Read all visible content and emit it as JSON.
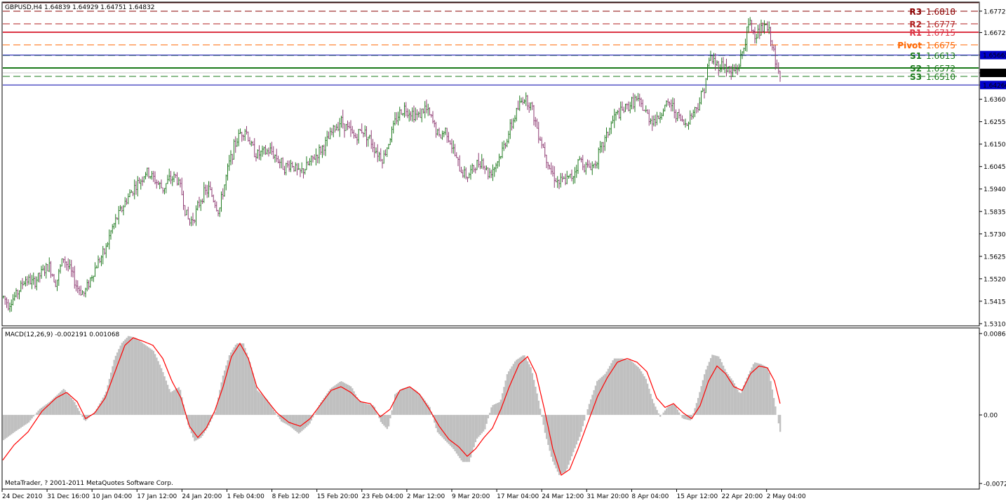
{
  "colors": {
    "bull": "#1f7a1f",
    "bear": "#8e3a72",
    "histogram": "#c0c0c0",
    "signal": "#ff0000",
    "r3": "#8b0000",
    "r2": "#b22222",
    "r1": "#dc3545",
    "pivot": "#ff6600",
    "s1": "#1a7a1a",
    "s2": "#1a7a1a",
    "s3": "#1a7a1a",
    "support_line": "#0000aa",
    "price_line": "#c8c8c8",
    "tag_blue": "#0000cc",
    "tag_black": "#000000"
  },
  "header": {
    "symbol_info": "GBPUSD,H4  1.64839 1.64929 1.64751 1.64832",
    "macd_info": "MACD(12,26,9) -0.002191 0.001068",
    "copyright": "MetaTrader, ? 2001-2011 MetaQuotes Software Corp."
  },
  "chart_data": [
    {
      "type": "ohlc",
      "symbol": "GBPUSD",
      "timeframe": "H4",
      "last_bar": {
        "open": 1.64839,
        "high": 1.64929,
        "low": 1.64751,
        "close": 1.64832
      },
      "ylim": [
        1.5313,
        1.6775
      ],
      "y_ticks": [
        "1.67720",
        "1.66720",
        "1.65665",
        "1.64832",
        "1.64266",
        "1.63600",
        "1.62550",
        "1.61500",
        "1.60450",
        "1.59400",
        "1.58350",
        "1.57300",
        "1.56250",
        "1.55200",
        "1.54150",
        "1.53100"
      ],
      "tagged_levels": [
        {
          "label": "1.65665",
          "value": 1.65665,
          "style": "blue"
        },
        {
          "label": "1.64832",
          "value": 1.64832,
          "style": "black"
        },
        {
          "label": "1.64266",
          "value": 1.64266,
          "style": "blue"
        }
      ],
      "pivot_levels": [
        {
          "name": "R3",
          "value": "1.6818",
          "color_key": "r3"
        },
        {
          "name": "R2",
          "value": "1.6777",
          "color_key": "r2"
        },
        {
          "name": "R1",
          "value": "1.6715",
          "color_key": "r1"
        },
        {
          "name": "Pivot",
          "value": "1.6675",
          "color_key": "pivot"
        },
        {
          "name": "S1",
          "value": "1.6613",
          "color_key": "s1"
        },
        {
          "name": "S2",
          "value": "1.6572",
          "color_key": "s2"
        },
        {
          "name": "S3",
          "value": "1.6510",
          "color_key": "s3"
        }
      ],
      "close_path": [
        [
          0,
          1.546
        ],
        [
          12,
          1.54
        ],
        [
          24,
          1.545
        ],
        [
          36,
          1.552
        ],
        [
          48,
          1.55
        ],
        [
          60,
          1.555
        ],
        [
          70,
          1.558
        ],
        [
          80,
          1.55
        ],
        [
          90,
          1.562
        ],
        [
          100,
          1.556
        ],
        [
          110,
          1.548
        ],
        [
          120,
          1.545
        ],
        [
          130,
          1.553
        ],
        [
          140,
          1.56
        ],
        [
          150,
          1.565
        ],
        [
          158,
          1.574
        ],
        [
          166,
          1.58
        ],
        [
          174,
          1.585
        ],
        [
          182,
          1.59
        ],
        [
          192,
          1.595
        ],
        [
          200,
          1.598
        ],
        [
          208,
          1.602
        ],
        [
          216,
          1.6
        ],
        [
          224,
          1.597
        ],
        [
          232,
          1.594
        ],
        [
          240,
          1.598
        ],
        [
          250,
          1.6
        ],
        [
          258,
          1.594
        ],
        [
          264,
          1.584
        ],
        [
          270,
          1.578
        ],
        [
          278,
          1.582
        ],
        [
          288,
          1.591
        ],
        [
          298,
          1.594
        ],
        [
          306,
          1.588
        ],
        [
          312,
          1.583
        ],
        [
          318,
          1.593
        ],
        [
          326,
          1.605
        ],
        [
          334,
          1.614
        ],
        [
          342,
          1.62
        ],
        [
          350,
          1.622
        ],
        [
          358,
          1.614
        ],
        [
          366,
          1.61
        ],
        [
          376,
          1.611
        ],
        [
          386,
          1.612
        ],
        [
          396,
          1.608
        ],
        [
          406,
          1.604
        ],
        [
          416,
          1.606
        ],
        [
          426,
          1.601
        ],
        [
          436,
          1.604
        ],
        [
          446,
          1.608
        ],
        [
          456,
          1.612
        ],
        [
          466,
          1.616
        ],
        [
          476,
          1.622
        ],
        [
          486,
          1.626
        ],
        [
          496,
          1.622
        ],
        [
          506,
          1.618
        ],
        [
          516,
          1.622
        ],
        [
          526,
          1.618
        ],
        [
          536,
          1.612
        ],
        [
          546,
          1.608
        ],
        [
          556,
          1.618
        ],
        [
          566,
          1.628
        ],
        [
          576,
          1.632
        ],
        [
          586,
          1.63
        ],
        [
          596,
          1.628
        ],
        [
          606,
          1.632
        ],
        [
          616,
          1.626
        ],
        [
          626,
          1.618
        ],
        [
          636,
          1.622
        ],
        [
          646,
          1.612
        ],
        [
          656,
          1.603
        ],
        [
          666,
          1.6
        ],
        [
          676,
          1.604
        ],
        [
          686,
          1.608
        ],
        [
          696,
          1.601
        ],
        [
          706,
          1.605
        ],
        [
          716,
          1.612
        ],
        [
          726,
          1.621
        ],
        [
          736,
          1.63
        ],
        [
          746,
          1.637
        ],
        [
          756,
          1.634
        ],
        [
          766,
          1.622
        ],
        [
          776,
          1.612
        ],
        [
          786,
          1.602
        ],
        [
          796,
          1.597
        ],
        [
          806,
          1.598
        ],
        [
          816,
          1.6
        ],
        [
          826,
          1.608
        ],
        [
          836,
          1.604
        ],
        [
          846,
          1.605
        ],
        [
          856,
          1.612
        ],
        [
          866,
          1.62
        ],
        [
          876,
          1.628
        ],
        [
          886,
          1.63
        ],
        [
          896,
          1.633
        ],
        [
          906,
          1.636
        ],
        [
          916,
          1.632
        ],
        [
          926,
          1.627
        ],
        [
          936,
          1.626
        ],
        [
          946,
          1.632
        ],
        [
          956,
          1.634
        ],
        [
          966,
          1.628
        ],
        [
          976,
          1.624
        ],
        [
          986,
          1.629
        ],
        [
          996,
          1.634
        ],
        [
          1004,
          1.642
        ],
        [
          1012,
          1.656
        ],
        [
          1022,
          1.652
        ],
        [
          1032,
          1.652
        ],
        [
          1042,
          1.648
        ],
        [
          1052,
          1.651
        ],
        [
          1060,
          1.66
        ],
        [
          1068,
          1.672
        ],
        [
          1076,
          1.666
        ],
        [
          1084,
          1.668
        ],
        [
          1092,
          1.67
        ],
        [
          1100,
          1.664
        ],
        [
          1106,
          1.65
        ],
        [
          1112,
          1.648
        ]
      ]
    },
    {
      "type": "bar",
      "name": "MACD(12,26,9)",
      "macd": -0.002191,
      "signal": 0.001068,
      "ylim": [
        -0.00729,
        0.00865
      ],
      "y_ticks": [
        "0.00865",
        "0.00",
        "-0.00729"
      ],
      "zero": 0,
      "macd_path": [
        [
          0,
          -0.0029
        ],
        [
          20,
          -0.0018
        ],
        [
          40,
          -0.0008
        ],
        [
          55,
          0.0006
        ],
        [
          70,
          0.0014
        ],
        [
          90,
          0.0028
        ],
        [
          105,
          0.0014
        ],
        [
          120,
          -0.0007
        ],
        [
          135,
          0.0004
        ],
        [
          150,
          0.0024
        ],
        [
          162,
          0.006
        ],
        [
          172,
          0.0076
        ],
        [
          182,
          0.0084
        ],
        [
          192,
          0.0082
        ],
        [
          205,
          0.0075
        ],
        [
          218,
          0.0068
        ],
        [
          230,
          0.0048
        ],
        [
          242,
          0.0024
        ],
        [
          255,
          0.003
        ],
        [
          266,
          -0.0008
        ],
        [
          276,
          -0.0028
        ],
        [
          286,
          -0.0024
        ],
        [
          296,
          -0.0012
        ],
        [
          306,
          0.0004
        ],
        [
          316,
          0.004
        ],
        [
          326,
          0.0064
        ],
        [
          336,
          0.0076
        ],
        [
          346,
          0.0076
        ],
        [
          356,
          0.0054
        ],
        [
          366,
          0.0026
        ],
        [
          380,
          0.0016
        ],
        [
          390,
          0.0004
        ],
        [
          400,
          -0.0007
        ],
        [
          412,
          -0.0012
        ],
        [
          425,
          -0.002
        ],
        [
          440,
          -0.001
        ],
        [
          455,
          0.0012
        ],
        [
          470,
          0.0028
        ],
        [
          485,
          0.0036
        ],
        [
          500,
          0.003
        ],
        [
          510,
          0.0016
        ],
        [
          520,
          0.0012
        ],
        [
          532,
          0.001
        ],
        [
          542,
          -0.0008
        ],
        [
          552,
          -0.0016
        ],
        [
          562,
          0.0022
        ],
        [
          572,
          0.0028
        ],
        [
          582,
          0.003
        ],
        [
          592,
          0.0026
        ],
        [
          602,
          0.0018
        ],
        [
          612,
          0.0008
        ],
        [
          622,
          -0.0018
        ],
        [
          632,
          -0.0026
        ],
        [
          645,
          -0.0036
        ],
        [
          658,
          -0.005
        ],
        [
          668,
          -0.005
        ],
        [
          678,
          -0.0026
        ],
        [
          690,
          -0.0016
        ],
        [
          700,
          0.001
        ],
        [
          712,
          0.0014
        ],
        [
          722,
          0.0044
        ],
        [
          734,
          0.0058
        ],
        [
          746,
          0.0064
        ],
        [
          756,
          0.005
        ],
        [
          766,
          0.0018
        ],
        [
          776,
          -0.002
        ],
        [
          786,
          -0.0048
        ],
        [
          796,
          -0.0064
        ],
        [
          806,
          -0.006
        ],
        [
          816,
          -0.004
        ],
        [
          826,
          -0.0022
        ],
        [
          838,
          0.001
        ],
        [
          850,
          0.0036
        ],
        [
          862,
          0.0044
        ],
        [
          874,
          0.006
        ],
        [
          886,
          0.006
        ],
        [
          898,
          0.0058
        ],
        [
          910,
          0.005
        ],
        [
          920,
          0.0038
        ],
        [
          930,
          0.0014
        ],
        [
          940,
          -0.0002
        ],
        [
          950,
          0.0008
        ],
        [
          960,
          0.0012
        ],
        [
          972,
          -0.0004
        ],
        [
          984,
          -0.0006
        ],
        [
          994,
          0.0018
        ],
        [
          1004,
          0.0046
        ],
        [
          1014,
          0.0064
        ],
        [
          1024,
          0.0062
        ],
        [
          1034,
          0.0046
        ],
        [
          1044,
          0.0036
        ],
        [
          1054,
          0.0022
        ],
        [
          1064,
          0.004
        ],
        [
          1074,
          0.0056
        ],
        [
          1084,
          0.0054
        ],
        [
          1094,
          0.005
        ],
        [
          1104,
          0.001
        ],
        [
          1112,
          -0.0022
        ]
      ],
      "signal_path": [
        [
          0,
          -0.0052
        ],
        [
          20,
          -0.0032
        ],
        [
          40,
          -0.0018
        ],
        [
          60,
          0.0004
        ],
        [
          80,
          0.0018
        ],
        [
          95,
          0.0024
        ],
        [
          110,
          0.0014
        ],
        [
          122,
          -0.0004
        ],
        [
          135,
          0.0002
        ],
        [
          150,
          0.0018
        ],
        [
          165,
          0.0048
        ],
        [
          178,
          0.0074
        ],
        [
          190,
          0.0082
        ],
        [
          205,
          0.0078
        ],
        [
          218,
          0.0074
        ],
        [
          232,
          0.006
        ],
        [
          245,
          0.0036
        ],
        [
          258,
          0.0018
        ],
        [
          270,
          -0.0012
        ],
        [
          282,
          -0.0024
        ],
        [
          294,
          -0.0014
        ],
        [
          306,
          0.0004
        ],
        [
          318,
          0.003
        ],
        [
          330,
          0.0062
        ],
        [
          342,
          0.0076
        ],
        [
          354,
          0.006
        ],
        [
          366,
          0.003
        ],
        [
          380,
          0.0016
        ],
        [
          395,
          0.0002
        ],
        [
          412,
          -0.0008
        ],
        [
          428,
          -0.0012
        ],
        [
          442,
          -0.0004
        ],
        [
          458,
          0.0012
        ],
        [
          472,
          0.0026
        ],
        [
          486,
          0.003
        ],
        [
          500,
          0.0024
        ],
        [
          514,
          0.0014
        ],
        [
          528,
          0.0012
        ],
        [
          542,
          -0.0002
        ],
        [
          556,
          0.0006
        ],
        [
          570,
          0.0026
        ],
        [
          584,
          0.003
        ],
        [
          598,
          0.0022
        ],
        [
          612,
          0.0006
        ],
        [
          626,
          -0.0012
        ],
        [
          640,
          -0.0026
        ],
        [
          654,
          -0.0034
        ],
        [
          666,
          -0.0044
        ],
        [
          678,
          -0.0036
        ],
        [
          690,
          -0.0024
        ],
        [
          702,
          -0.0014
        ],
        [
          714,
          0.0006
        ],
        [
          726,
          0.003
        ],
        [
          740,
          0.0054
        ],
        [
          752,
          0.0062
        ],
        [
          764,
          0.0044
        ],
        [
          776,
          0.0006
        ],
        [
          788,
          -0.0036
        ],
        [
          800,
          -0.0064
        ],
        [
          812,
          -0.0058
        ],
        [
          824,
          -0.0036
        ],
        [
          838,
          -0.0008
        ],
        [
          852,
          0.002
        ],
        [
          866,
          0.004
        ],
        [
          880,
          0.0056
        ],
        [
          894,
          0.006
        ],
        [
          908,
          0.0056
        ],
        [
          922,
          0.0046
        ],
        [
          936,
          0.0018
        ],
        [
          948,
          0.0008
        ],
        [
          960,
          0.0012
        ],
        [
          974,
          0.0002
        ],
        [
          986,
          -0.0004
        ],
        [
          998,
          0.001
        ],
        [
          1010,
          0.0036
        ],
        [
          1022,
          0.0052
        ],
        [
          1034,
          0.0044
        ],
        [
          1046,
          0.003
        ],
        [
          1058,
          0.0026
        ],
        [
          1070,
          0.0044
        ],
        [
          1082,
          0.0052
        ],
        [
          1094,
          0.005
        ],
        [
          1104,
          0.0036
        ],
        [
          1112,
          0.0012
        ]
      ]
    }
  ],
  "x_axis_labels": [
    "24 Dec 2010",
    "31 Dec 16:00",
    "10 Jan 04:00",
    "17 Jan 12:00",
    "24 Jan 20:00",
    "1 Feb 04:00",
    "8 Feb 12:00",
    "15 Feb 20:00",
    "23 Feb 04:00",
    "2 Mar 12:00",
    "9 Mar 20:00",
    "17 Mar 04:00",
    "24 Mar 12:00",
    "31 Mar 20:00",
    "8 Apr 04:00",
    "15 Apr 12:00",
    "22 Apr 20:00",
    "2 May 04:00"
  ]
}
